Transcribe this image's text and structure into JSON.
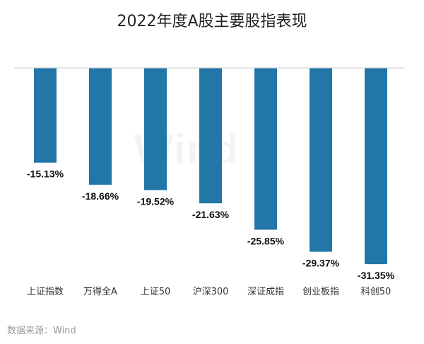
{
  "chart_data": {
    "type": "bar",
    "title": "2022年度A股主要股指表现",
    "categories": [
      "上证指数",
      "万得全A",
      "上证50",
      "沪深300",
      "深证成指",
      "创业板指",
      "科创50"
    ],
    "values": [
      -15.13,
      -18.66,
      -19.52,
      -21.63,
      -25.85,
      -29.37,
      -31.35
    ],
    "data_labels": [
      "-15.13%",
      "-18.66%",
      "-19.52%",
      "-21.63%",
      "-25.85%",
      "-29.37%",
      "-31.35%"
    ],
    "unit": "%",
    "ylim": [
      -36,
      0
    ],
    "grid": false,
    "legend": false,
    "bar_color": "#2276a8"
  },
  "watermark": "Wind",
  "source": "数据来源：Wind"
}
